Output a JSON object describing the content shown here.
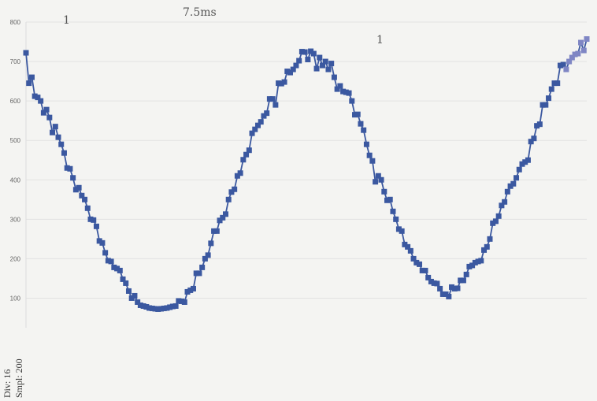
{
  "chart_data": {
    "type": "line",
    "title": "",
    "xlabel": "",
    "ylabel": "",
    "ylim": [
      25,
      800
    ],
    "yticks": [
      100,
      200,
      300,
      400,
      500,
      600,
      700,
      800
    ],
    "grid": true,
    "series": [
      {
        "color": "#3b58a0",
        "marker": "square",
        "values": [
          722,
          645,
          660,
          612,
          609,
          600,
          570,
          578,
          558,
          520,
          535,
          508,
          490,
          468,
          430,
          428,
          405,
          375,
          380,
          360,
          350,
          328,
          300,
          298,
          282,
          245,
          240,
          215,
          195,
          193,
          178,
          175,
          170,
          148,
          138,
          118,
          100,
          106,
          90,
          82,
          80,
          78,
          75,
          74,
          73,
          72,
          73,
          74,
          75,
          77,
          79,
          80,
          93,
          92,
          90,
          116,
          120,
          124,
          163,
          163,
          178,
          200,
          209,
          239,
          270,
          270,
          297,
          304,
          313,
          350,
          369,
          376,
          410,
          417,
          451,
          464,
          475,
          518,
          528,
          538,
          547,
          562,
          569,
          605,
          605,
          590,
          645,
          644,
          648,
          675,
          672,
          680,
          690,
          702,
          725,
          724,
          705,
          726,
          720,
          682,
          710,
          690,
          700,
          680,
          695,
          660,
          630,
          638,
          624,
          622,
          620,
          600,
          565,
          566,
          542,
          526,
          490,
          462,
          448,
          395,
          410,
          400,
          370,
          348,
          350,
          320,
          300,
          275,
          270,
          236,
          230,
          220,
          200,
          190,
          186,
          170,
          170,
          152,
          142,
          138,
          137,
          124,
          110,
          110,
          104,
          128,
          124,
          125,
          145,
          145,
          160,
          180,
          183,
          190,
          193,
          195,
          222,
          230,
          250,
          290,
          295,
          308,
          335,
          344,
          370,
          384,
          390,
          405,
          426,
          440,
          445,
          450,
          497,
          505,
          537,
          541,
          590,
          590,
          607,
          630,
          645,
          645,
          690,
          692,
          680,
          700,
          710,
          718,
          720,
          748,
          728,
          757
        ]
      }
    ]
  },
  "annotations": {
    "handwritten_top": "7.5ms",
    "handwritten_right": "1",
    "handwritten_left": "1"
  },
  "side_labels": {
    "div": "Div: 16",
    "smpl": "Smpl: 200"
  }
}
